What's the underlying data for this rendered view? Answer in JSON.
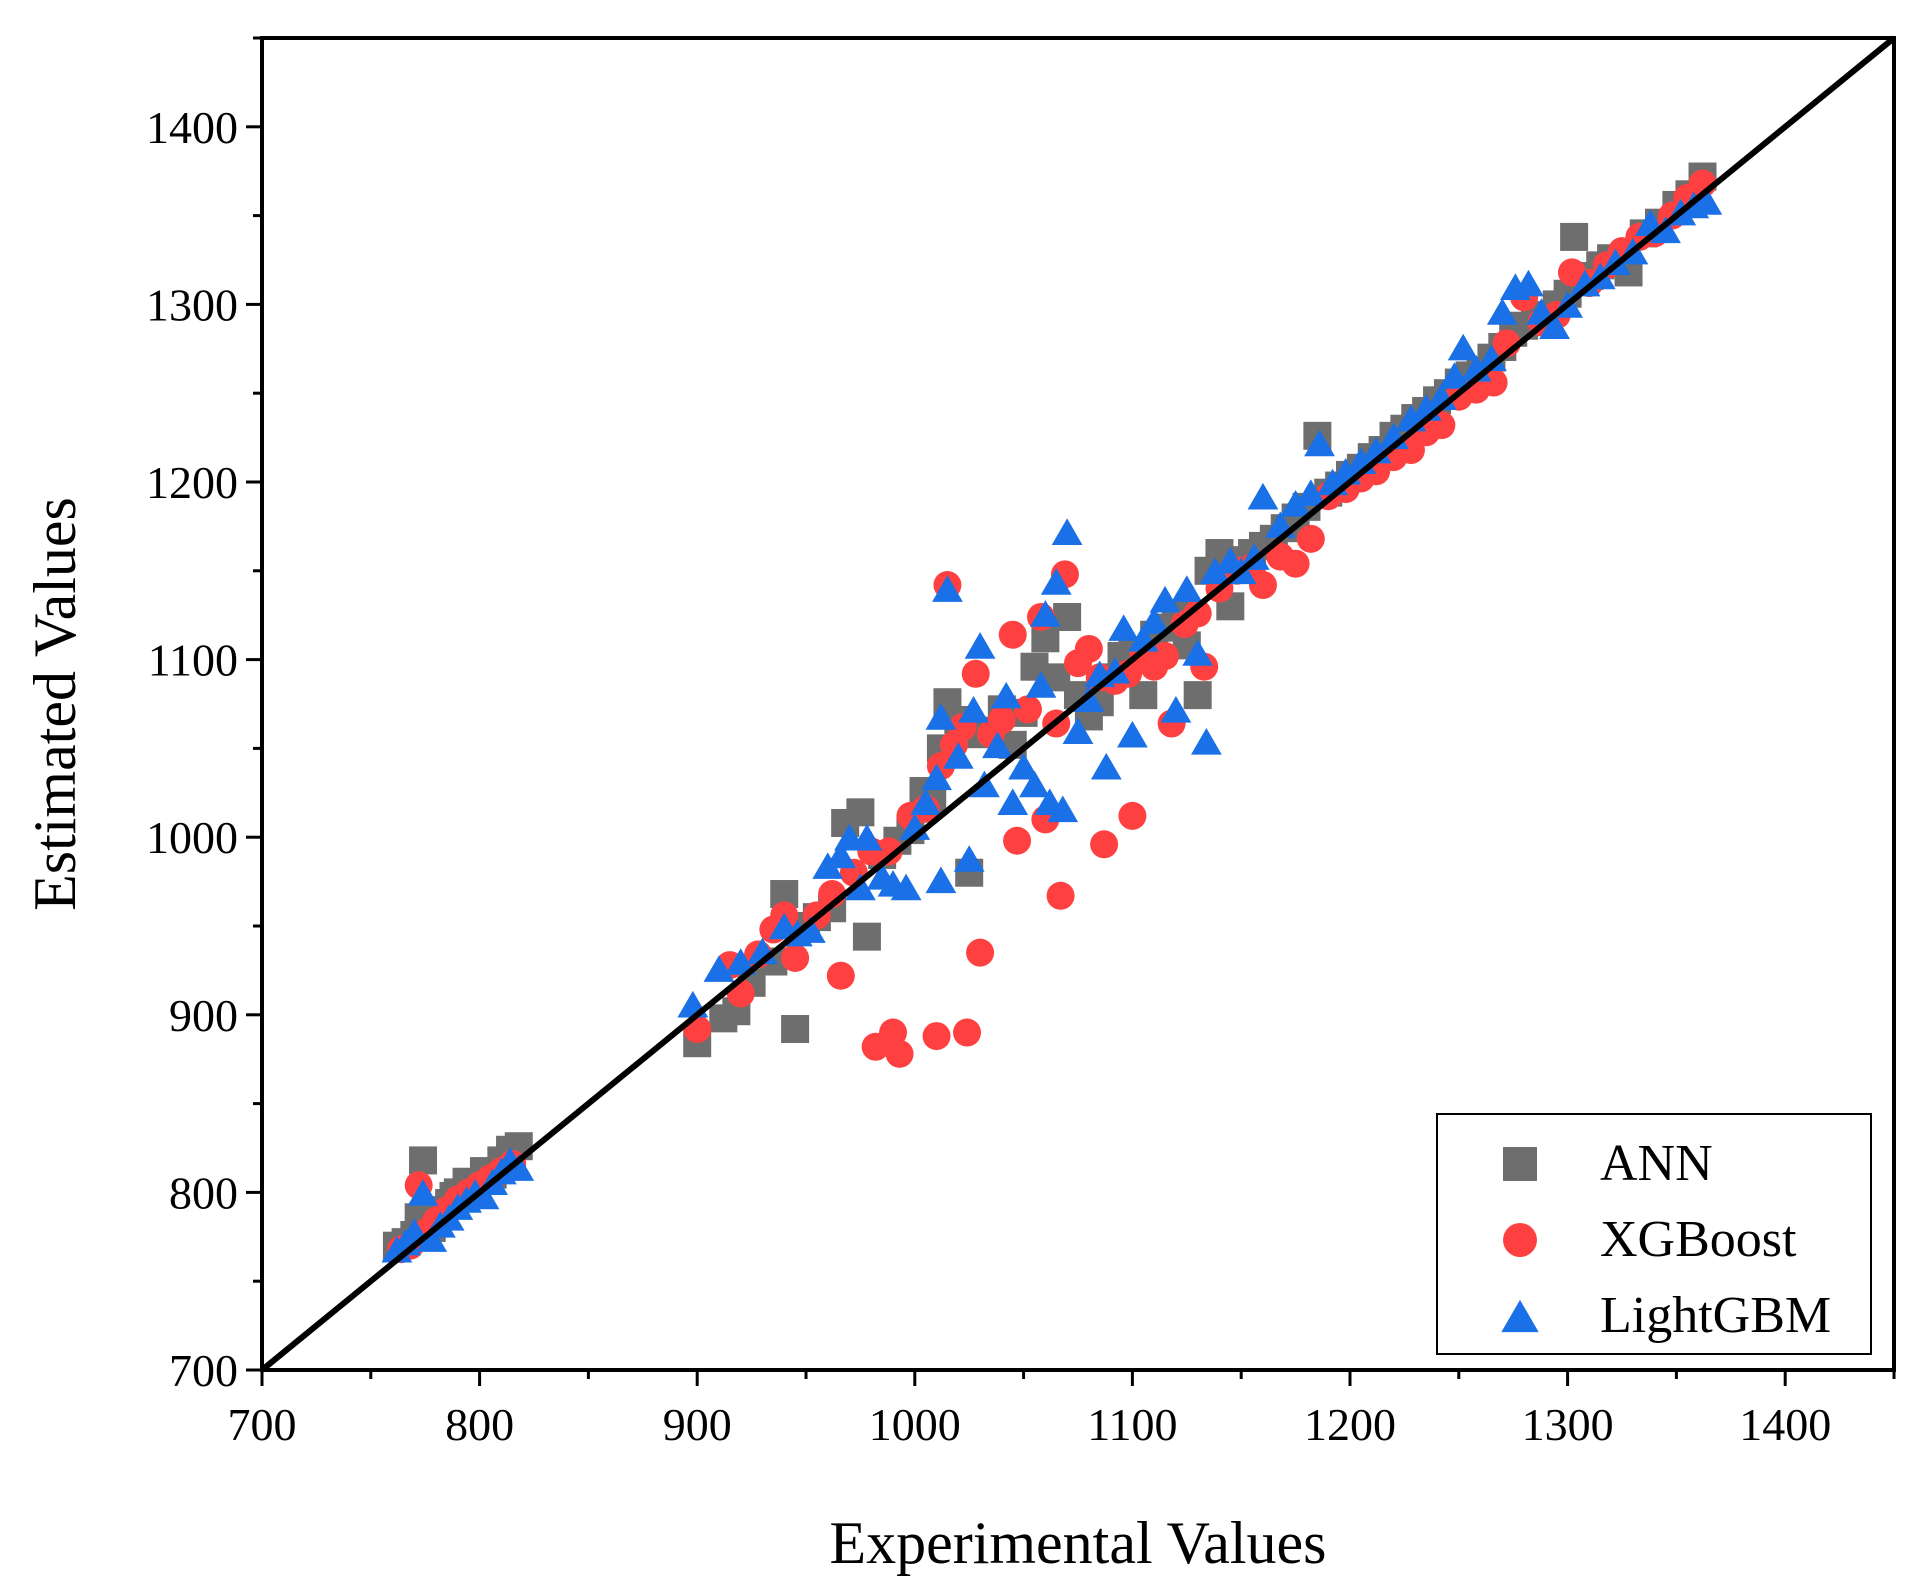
{
  "chart_data": {
    "type": "scatter",
    "title": "",
    "xlabel": "Experimental Values",
    "ylabel": "Estimated Values",
    "xlim": [
      700,
      1450
    ],
    "ylim": [
      700,
      1450
    ],
    "x_ticks": [
      700,
      800,
      900,
      1000,
      1100,
      1200,
      1300,
      1400
    ],
    "y_ticks": [
      700,
      800,
      900,
      1000,
      1100,
      1200,
      1300,
      1400
    ],
    "x_tick_labels": [
      "700",
      "800",
      "900",
      "1000",
      "1100",
      "1200",
      "1300",
      "1400"
    ],
    "y_tick_labels": [
      "700",
      "800",
      "900",
      "1000",
      "1100",
      "1200",
      "1300",
      "1400"
    ],
    "reference_line": {
      "name": "y = x",
      "from": [
        700,
        700
      ],
      "to": [
        1450,
        1450
      ],
      "color": "#000000"
    },
    "legend_position": "bottom-right",
    "series": [
      {
        "name": "ANN",
        "marker": "square",
        "color": "#6e6e6e",
        "points": [
          [
            762,
            770
          ],
          [
            766,
            772
          ],
          [
            770,
            776
          ],
          [
            774,
            818
          ],
          [
            778,
            780
          ],
          [
            782,
            790
          ],
          [
            786,
            794
          ],
          [
            790,
            800
          ],
          [
            794,
            806
          ],
          [
            798,
            804
          ],
          [
            802,
            812
          ],
          [
            806,
            810
          ],
          [
            810,
            818
          ],
          [
            814,
            824
          ],
          [
            818,
            826
          ],
          [
            772,
            786
          ],
          [
            788,
            798
          ],
          [
            900,
            884
          ],
          [
            912,
            898
          ],
          [
            918,
            902
          ],
          [
            925,
            918
          ],
          [
            935,
            930
          ],
          [
            940,
            968
          ],
          [
            945,
            892
          ],
          [
            950,
            950
          ],
          [
            955,
            955
          ],
          [
            962,
            960
          ],
          [
            968,
            1008
          ],
          [
            975,
            1014
          ],
          [
            978,
            944
          ],
          [
            985,
            990
          ],
          [
            992,
            998
          ],
          [
            998,
            1004
          ],
          [
            1004,
            1026
          ],
          [
            1008,
            1020
          ],
          [
            1012,
            1050
          ],
          [
            1015,
            1076
          ],
          [
            1020,
            1066
          ],
          [
            1025,
            980
          ],
          [
            1030,
            1058
          ],
          [
            1035,
            1060
          ],
          [
            1040,
            1072
          ],
          [
            1045,
            1052
          ],
          [
            1050,
            1070
          ],
          [
            1055,
            1096
          ],
          [
            1060,
            1112
          ],
          [
            1065,
            1090
          ],
          [
            1070,
            1124
          ],
          [
            1075,
            1080
          ],
          [
            1080,
            1068
          ],
          [
            1085,
            1076
          ],
          [
            1090,
            1090
          ],
          [
            1095,
            1102
          ],
          [
            1100,
            1104
          ],
          [
            1105,
            1080
          ],
          [
            1110,
            1114
          ],
          [
            1115,
            1118
          ],
          [
            1120,
            1126
          ],
          [
            1125,
            1108
          ],
          [
            1130,
            1080
          ],
          [
            1135,
            1150
          ],
          [
            1140,
            1160
          ],
          [
            1145,
            1130
          ],
          [
            1150,
            1156
          ],
          [
            1155,
            1160
          ],
          [
            1160,
            1164
          ],
          [
            1165,
            1168
          ],
          [
            1170,
            1174
          ],
          [
            1175,
            1180
          ],
          [
            1180,
            1186
          ],
          [
            1185,
            1226
          ],
          [
            1190,
            1194
          ],
          [
            1195,
            1198
          ],
          [
            1200,
            1204
          ],
          [
            1205,
            1208
          ],
          [
            1210,
            1214
          ],
          [
            1215,
            1218
          ],
          [
            1220,
            1226
          ],
          [
            1225,
            1230
          ],
          [
            1230,
            1236
          ],
          [
            1235,
            1240
          ],
          [
            1240,
            1246
          ],
          [
            1245,
            1250
          ],
          [
            1250,
            1256
          ],
          [
            1255,
            1260
          ],
          [
            1260,
            1262
          ],
          [
            1265,
            1270
          ],
          [
            1270,
            1276
          ],
          [
            1275,
            1284
          ],
          [
            1280,
            1288
          ],
          [
            1285,
            1290
          ],
          [
            1290,
            1294
          ],
          [
            1295,
            1300
          ],
          [
            1300,
            1306
          ],
          [
            1303,
            1338
          ],
          [
            1310,
            1316
          ],
          [
            1315,
            1322
          ],
          [
            1320,
            1326
          ],
          [
            1328,
            1318
          ],
          [
            1335,
            1340
          ],
          [
            1342,
            1346
          ],
          [
            1350,
            1356
          ],
          [
            1356,
            1362
          ],
          [
            1362,
            1372
          ]
        ]
      },
      {
        "name": "XGBoost",
        "marker": "circle",
        "color": "#ff4040",
        "points": [
          [
            764,
            768
          ],
          [
            768,
            770
          ],
          [
            772,
            804
          ],
          [
            776,
            778
          ],
          [
            780,
            784
          ],
          [
            785,
            790
          ],
          [
            790,
            796
          ],
          [
            795,
            800
          ],
          [
            800,
            804
          ],
          [
            805,
            808
          ],
          [
            810,
            812
          ],
          [
            815,
            816
          ],
          [
            900,
            892
          ],
          [
            915,
            928
          ],
          [
            920,
            912
          ],
          [
            928,
            934
          ],
          [
            935,
            948
          ],
          [
            940,
            956
          ],
          [
            945,
            932
          ],
          [
            955,
            956
          ],
          [
            962,
            968
          ],
          [
            966,
            922
          ],
          [
            972,
            980
          ],
          [
            980,
            992
          ],
          [
            982,
            882
          ],
          [
            988,
            992
          ],
          [
            990,
            890
          ],
          [
            993,
            878
          ],
          [
            998,
            1012
          ],
          [
            1005,
            1016
          ],
          [
            1010,
            888
          ],
          [
            1012,
            1040
          ],
          [
            1015,
            1142
          ],
          [
            1018,
            1052
          ],
          [
            1022,
            1062
          ],
          [
            1024,
            890
          ],
          [
            1028,
            1092
          ],
          [
            1030,
            935
          ],
          [
            1035,
            1058
          ],
          [
            1040,
            1066
          ],
          [
            1045,
            1114
          ],
          [
            1047,
            998
          ],
          [
            1052,
            1072
          ],
          [
            1058,
            1124
          ],
          [
            1060,
            1010
          ],
          [
            1065,
            1064
          ],
          [
            1067,
            967
          ],
          [
            1069,
            1148
          ],
          [
            1075,
            1098
          ],
          [
            1080,
            1106
          ],
          [
            1085,
            1090
          ],
          [
            1087,
            996
          ],
          [
            1092,
            1088
          ],
          [
            1098,
            1092
          ],
          [
            1100,
            1012
          ],
          [
            1105,
            1104
          ],
          [
            1110,
            1096
          ],
          [
            1115,
            1102
          ],
          [
            1118,
            1064
          ],
          [
            1124,
            1120
          ],
          [
            1130,
            1126
          ],
          [
            1133,
            1096
          ],
          [
            1140,
            1140
          ],
          [
            1148,
            1150
          ],
          [
            1155,
            1152
          ],
          [
            1160,
            1142
          ],
          [
            1168,
            1158
          ],
          [
            1175,
            1154
          ],
          [
            1182,
            1168
          ],
          [
            1190,
            1192
          ],
          [
            1198,
            1196
          ],
          [
            1205,
            1202
          ],
          [
            1212,
            1206
          ],
          [
            1220,
            1214
          ],
          [
            1228,
            1218
          ],
          [
            1235,
            1228
          ],
          [
            1242,
            1232
          ],
          [
            1250,
            1248
          ],
          [
            1258,
            1252
          ],
          [
            1266,
            1256
          ],
          [
            1272,
            1278
          ],
          [
            1280,
            1304
          ],
          [
            1288,
            1290
          ],
          [
            1295,
            1294
          ],
          [
            1302,
            1318
          ],
          [
            1310,
            1312
          ],
          [
            1318,
            1322
          ],
          [
            1325,
            1330
          ],
          [
            1333,
            1338
          ],
          [
            1340,
            1340
          ],
          [
            1348,
            1350
          ],
          [
            1355,
            1360
          ],
          [
            1362,
            1368
          ]
        ]
      },
      {
        "name": "LightGBM",
        "marker": "triangle",
        "color": "#1a70e6",
        "points": [
          [
            762,
            768
          ],
          [
            766,
            772
          ],
          [
            770,
            778
          ],
          [
            774,
            800
          ],
          [
            778,
            774
          ],
          [
            782,
            782
          ],
          [
            786,
            786
          ],
          [
            790,
            792
          ],
          [
            794,
            796
          ],
          [
            798,
            800
          ],
          [
            802,
            798
          ],
          [
            806,
            806
          ],
          [
            810,
            812
          ],
          [
            814,
            818
          ],
          [
            818,
            814
          ],
          [
            898,
            906
          ],
          [
            910,
            926
          ],
          [
            920,
            930
          ],
          [
            930,
            936
          ],
          [
            940,
            950
          ],
          [
            946,
            946
          ],
          [
            952,
            948
          ],
          [
            960,
            984
          ],
          [
            966,
            990
          ],
          [
            970,
            1000
          ],
          [
            975,
            972
          ],
          [
            978,
            1000
          ],
          [
            985,
            978
          ],
          [
            990,
            974
          ],
          [
            996,
            972
          ],
          [
            1000,
            1006
          ],
          [
            1005,
            1020
          ],
          [
            1010,
            1034
          ],
          [
            1012,
            1068
          ],
          [
            1012,
            976
          ],
          [
            1015,
            1140
          ],
          [
            1020,
            1046
          ],
          [
            1025,
            988
          ],
          [
            1027,
            1072
          ],
          [
            1030,
            1108
          ],
          [
            1032,
            1030
          ],
          [
            1038,
            1052
          ],
          [
            1042,
            1080
          ],
          [
            1045,
            1020
          ],
          [
            1050,
            1040
          ],
          [
            1055,
            1030
          ],
          [
            1058,
            1086
          ],
          [
            1060,
            1126
          ],
          [
            1062,
            1020
          ],
          [
            1065,
            1144
          ],
          [
            1068,
            1016
          ],
          [
            1070,
            1172
          ],
          [
            1075,
            1060
          ],
          [
            1080,
            1078
          ],
          [
            1085,
            1092
          ],
          [
            1088,
            1040
          ],
          [
            1092,
            1094
          ],
          [
            1096,
            1118
          ],
          [
            1100,
            1058
          ],
          [
            1105,
            1112
          ],
          [
            1110,
            1122
          ],
          [
            1115,
            1134
          ],
          [
            1120,
            1072
          ],
          [
            1125,
            1140
          ],
          [
            1130,
            1104
          ],
          [
            1134,
            1054
          ],
          [
            1138,
            1150
          ],
          [
            1145,
            1156
          ],
          [
            1150,
            1150
          ],
          [
            1156,
            1158
          ],
          [
            1160,
            1192
          ],
          [
            1168,
            1176
          ],
          [
            1175,
            1188
          ],
          [
            1182,
            1194
          ],
          [
            1186,
            1222
          ],
          [
            1192,
            1200
          ],
          [
            1198,
            1206
          ],
          [
            1205,
            1212
          ],
          [
            1212,
            1218
          ],
          [
            1220,
            1226
          ],
          [
            1228,
            1236
          ],
          [
            1235,
            1242
          ],
          [
            1242,
            1248
          ],
          [
            1248,
            1260
          ],
          [
            1252,
            1276
          ],
          [
            1258,
            1264
          ],
          [
            1265,
            1270
          ],
          [
            1270,
            1296
          ],
          [
            1276,
            1310
          ],
          [
            1282,
            1312
          ],
          [
            1288,
            1296
          ],
          [
            1294,
            1288
          ],
          [
            1300,
            1300
          ],
          [
            1308,
            1312
          ],
          [
            1315,
            1316
          ],
          [
            1322,
            1324
          ],
          [
            1330,
            1330
          ],
          [
            1338,
            1346
          ],
          [
            1345,
            1342
          ],
          [
            1352,
            1352
          ],
          [
            1358,
            1356
          ],
          [
            1364,
            1358
          ]
        ]
      }
    ]
  }
}
